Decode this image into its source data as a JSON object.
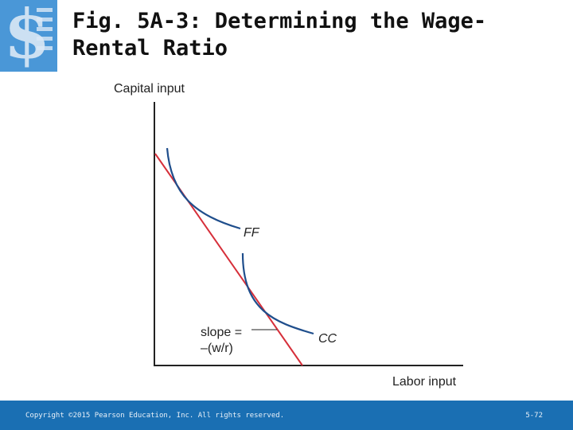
{
  "slide": {
    "title": "Fig. 5A-3:  Determining the Wage-Rental Ratio",
    "accent_color": "#1a6fb3"
  },
  "logo": {
    "icon": "dollar-sign-icon",
    "color": "#2f7fc1"
  },
  "diagram": {
    "y_axis_label": "Capital input",
    "x_axis_label": "Labor input",
    "curves": [
      {
        "label": "FF",
        "color": "#1f4e8c"
      },
      {
        "label": "CC",
        "color": "#1f4e8c"
      }
    ],
    "line": {
      "color": "#d62f3a"
    },
    "slope_label_line1": "slope =",
    "slope_label_line2": "–(w/r)"
  },
  "footer": {
    "copyright": "Copyright ©2015 Pearson Education, Inc. All rights reserved.",
    "page_number": "5-72"
  }
}
